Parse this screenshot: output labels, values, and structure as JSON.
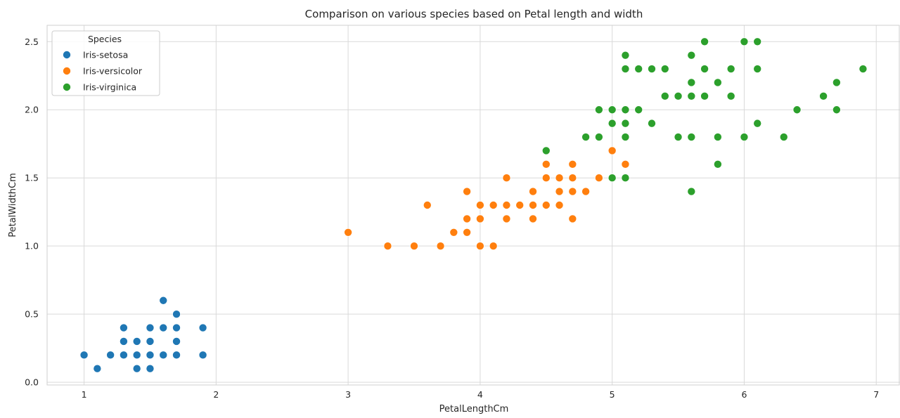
{
  "chart_data": {
    "type": "scatter",
    "title": "Comparison on various species based on Petal length and width",
    "xlabel": "PetalLengthCm",
    "ylabel": "PetalWidthCm",
    "xlim": [
      0.72,
      7.18
    ],
    "ylim": [
      -0.02,
      2.62
    ],
    "xticks": [
      1,
      2,
      3,
      4,
      5,
      6,
      7
    ],
    "xtick_labels": [
      "1",
      "2",
      "3",
      "4",
      "5",
      "6",
      "7"
    ],
    "yticks": [
      0.0,
      0.5,
      1.0,
      1.5,
      2.0,
      2.5
    ],
    "ytick_labels": [
      "0.0",
      "0.5",
      "1.0",
      "1.5",
      "2.0",
      "2.5"
    ],
    "grid": true,
    "legend": {
      "title": "Species",
      "placement": "top-left"
    },
    "series": [
      {
        "name": "Iris-setosa",
        "color": "#1f77b4",
        "points": [
          [
            1.0,
            0.2
          ],
          [
            1.1,
            0.1
          ],
          [
            1.2,
            0.2
          ],
          [
            1.3,
            0.2
          ],
          [
            1.3,
            0.3
          ],
          [
            1.3,
            0.4
          ],
          [
            1.4,
            0.1
          ],
          [
            1.4,
            0.2
          ],
          [
            1.4,
            0.3
          ],
          [
            1.5,
            0.1
          ],
          [
            1.5,
            0.2
          ],
          [
            1.5,
            0.3
          ],
          [
            1.5,
            0.4
          ],
          [
            1.6,
            0.2
          ],
          [
            1.6,
            0.4
          ],
          [
            1.6,
            0.6
          ],
          [
            1.7,
            0.2
          ],
          [
            1.7,
            0.3
          ],
          [
            1.7,
            0.4
          ],
          [
            1.7,
            0.5
          ],
          [
            1.9,
            0.2
          ],
          [
            1.9,
            0.4
          ]
        ]
      },
      {
        "name": "Iris-versicolor",
        "color": "#ff7f0e",
        "points": [
          [
            3.0,
            1.1
          ],
          [
            3.3,
            1.0
          ],
          [
            3.5,
            1.0
          ],
          [
            3.6,
            1.3
          ],
          [
            3.7,
            1.0
          ],
          [
            3.8,
            1.1
          ],
          [
            3.9,
            1.1
          ],
          [
            3.9,
            1.2
          ],
          [
            3.9,
            1.4
          ],
          [
            4.0,
            1.0
          ],
          [
            4.0,
            1.2
          ],
          [
            4.0,
            1.3
          ],
          [
            4.1,
            1.0
          ],
          [
            4.1,
            1.3
          ],
          [
            4.2,
            1.2
          ],
          [
            4.2,
            1.3
          ],
          [
            4.2,
            1.5
          ],
          [
            4.3,
            1.3
          ],
          [
            4.4,
            1.2
          ],
          [
            4.4,
            1.3
          ],
          [
            4.4,
            1.4
          ],
          [
            4.5,
            1.3
          ],
          [
            4.5,
            1.5
          ],
          [
            4.5,
            1.6
          ],
          [
            4.6,
            1.3
          ],
          [
            4.6,
            1.4
          ],
          [
            4.6,
            1.5
          ],
          [
            4.7,
            1.2
          ],
          [
            4.7,
            1.4
          ],
          [
            4.7,
            1.5
          ],
          [
            4.7,
            1.6
          ],
          [
            4.8,
            1.4
          ],
          [
            4.9,
            1.5
          ],
          [
            5.0,
            1.7
          ],
          [
            5.1,
            1.6
          ]
        ]
      },
      {
        "name": "Iris-virginica",
        "color": "#2ca02c",
        "points": [
          [
            4.5,
            1.7
          ],
          [
            4.8,
            1.8
          ],
          [
            4.9,
            1.8
          ],
          [
            4.9,
            2.0
          ],
          [
            5.0,
            1.5
          ],
          [
            5.0,
            1.9
          ],
          [
            5.0,
            2.0
          ],
          [
            5.1,
            1.5
          ],
          [
            5.1,
            1.8
          ],
          [
            5.1,
            1.9
          ],
          [
            5.1,
            2.0
          ],
          [
            5.1,
            2.3
          ],
          [
            5.1,
            2.4
          ],
          [
            5.2,
            2.0
          ],
          [
            5.2,
            2.3
          ],
          [
            5.3,
            1.9
          ],
          [
            5.3,
            2.3
          ],
          [
            5.4,
            2.1
          ],
          [
            5.4,
            2.3
          ],
          [
            5.5,
            1.8
          ],
          [
            5.5,
            2.1
          ],
          [
            5.6,
            1.4
          ],
          [
            5.6,
            1.8
          ],
          [
            5.6,
            2.1
          ],
          [
            5.6,
            2.2
          ],
          [
            5.6,
            2.4
          ],
          [
            5.7,
            2.1
          ],
          [
            5.7,
            2.3
          ],
          [
            5.7,
            2.5
          ],
          [
            5.8,
            1.6
          ],
          [
            5.8,
            1.8
          ],
          [
            5.8,
            2.2
          ],
          [
            5.9,
            2.1
          ],
          [
            5.9,
            2.3
          ],
          [
            6.0,
            1.8
          ],
          [
            6.0,
            2.5
          ],
          [
            6.1,
            1.9
          ],
          [
            6.1,
            2.3
          ],
          [
            6.1,
            2.5
          ],
          [
            6.3,
            1.8
          ],
          [
            6.4,
            2.0
          ],
          [
            6.6,
            2.1
          ],
          [
            6.7,
            2.0
          ],
          [
            6.7,
            2.2
          ],
          [
            6.9,
            2.3
          ]
        ]
      }
    ]
  }
}
